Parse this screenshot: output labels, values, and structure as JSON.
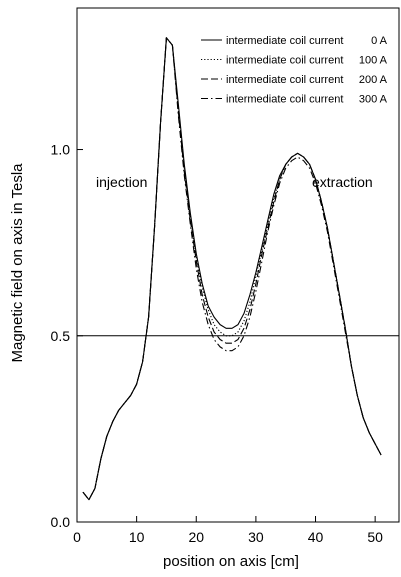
{
  "chart_data": {
    "type": "line",
    "title": "",
    "xlabel": "position on axis [cm]",
    "ylabel": "Magnetic field on axis in Tesla",
    "xlim": [
      0,
      54
    ],
    "ylim": [
      0,
      1.38
    ],
    "xticks": [
      0,
      10,
      20,
      30,
      40,
      50
    ],
    "xtick_labels": [
      "0",
      "10",
      "20",
      "30",
      "40",
      "50"
    ],
    "yticks": [
      0.0,
      0.5,
      1.0
    ],
    "ytick_labels": [
      "0.0",
      "0.5",
      "1.0"
    ],
    "grid": false,
    "legend_position": "top-right",
    "reference_line": {
      "y": 0.5
    },
    "annotations": [
      {
        "text": "injection",
        "x": 7.5,
        "y": 0.9
      },
      {
        "text": "extraction",
        "x": 44.5,
        "y": 0.9
      }
    ],
    "x": [
      1,
      2,
      3,
      4,
      5,
      6,
      7,
      8,
      9,
      10,
      11,
      12,
      13,
      14,
      15,
      16,
      17,
      18,
      19,
      20,
      21,
      22,
      23,
      24,
      25,
      26,
      27,
      28,
      29,
      30,
      31,
      32,
      33,
      34,
      35,
      36,
      37,
      38,
      39,
      40,
      41,
      42,
      43,
      44,
      45,
      46,
      47,
      48,
      49,
      50,
      51
    ],
    "series": [
      {
        "name": "intermediate coil current",
        "current": "0 A",
        "dash": "solid",
        "values": [
          0.08,
          0.06,
          0.09,
          0.17,
          0.23,
          0.27,
          0.3,
          0.32,
          0.34,
          0.37,
          0.43,
          0.55,
          0.79,
          1.07,
          1.3,
          1.28,
          1.12,
          0.96,
          0.83,
          0.72,
          0.64,
          0.58,
          0.55,
          0.53,
          0.52,
          0.52,
          0.53,
          0.56,
          0.61,
          0.67,
          0.74,
          0.81,
          0.88,
          0.93,
          0.96,
          0.98,
          0.99,
          0.98,
          0.96,
          0.92,
          0.86,
          0.79,
          0.7,
          0.61,
          0.52,
          0.42,
          0.34,
          0.28,
          0.24,
          0.21,
          0.18
        ]
      },
      {
        "name": "intermediate coil current",
        "current": "100 A",
        "dash": "dotted",
        "values": [
          0.08,
          0.06,
          0.09,
          0.17,
          0.23,
          0.27,
          0.3,
          0.32,
          0.34,
          0.37,
          0.43,
          0.55,
          0.79,
          1.07,
          1.3,
          1.28,
          1.11,
          0.95,
          0.82,
          0.71,
          0.63,
          0.57,
          0.53,
          0.51,
          0.5,
          0.5,
          0.51,
          0.54,
          0.59,
          0.66,
          0.73,
          0.8,
          0.87,
          0.92,
          0.96,
          0.98,
          0.99,
          0.98,
          0.96,
          0.92,
          0.86,
          0.79,
          0.7,
          0.61,
          0.52,
          0.42,
          0.34,
          0.28,
          0.24,
          0.21,
          0.18
        ]
      },
      {
        "name": "intermediate coil current",
        "current": "200 A",
        "dash": "dashed",
        "values": [
          0.08,
          0.06,
          0.09,
          0.17,
          0.23,
          0.27,
          0.3,
          0.32,
          0.34,
          0.37,
          0.43,
          0.55,
          0.79,
          1.07,
          1.3,
          1.28,
          1.1,
          0.94,
          0.81,
          0.7,
          0.61,
          0.55,
          0.51,
          0.49,
          0.48,
          0.48,
          0.49,
          0.52,
          0.57,
          0.64,
          0.72,
          0.79,
          0.86,
          0.92,
          0.96,
          0.98,
          0.99,
          0.98,
          0.96,
          0.92,
          0.86,
          0.79,
          0.7,
          0.61,
          0.52,
          0.42,
          0.34,
          0.28,
          0.24,
          0.21,
          0.18
        ]
      },
      {
        "name": "intermediate coil current",
        "current": "300 A",
        "dash": "dashdot",
        "values": [
          0.08,
          0.06,
          0.09,
          0.17,
          0.23,
          0.27,
          0.3,
          0.32,
          0.34,
          0.37,
          0.43,
          0.55,
          0.79,
          1.07,
          1.3,
          1.28,
          1.09,
          0.93,
          0.8,
          0.68,
          0.59,
          0.53,
          0.49,
          0.47,
          0.46,
          0.46,
          0.47,
          0.5,
          0.55,
          0.62,
          0.7,
          0.78,
          0.85,
          0.91,
          0.95,
          0.97,
          0.98,
          0.97,
          0.95,
          0.91,
          0.85,
          0.78,
          0.69,
          0.6,
          0.51,
          0.42,
          0.34,
          0.28,
          0.24,
          0.21,
          0.18
        ]
      }
    ]
  }
}
